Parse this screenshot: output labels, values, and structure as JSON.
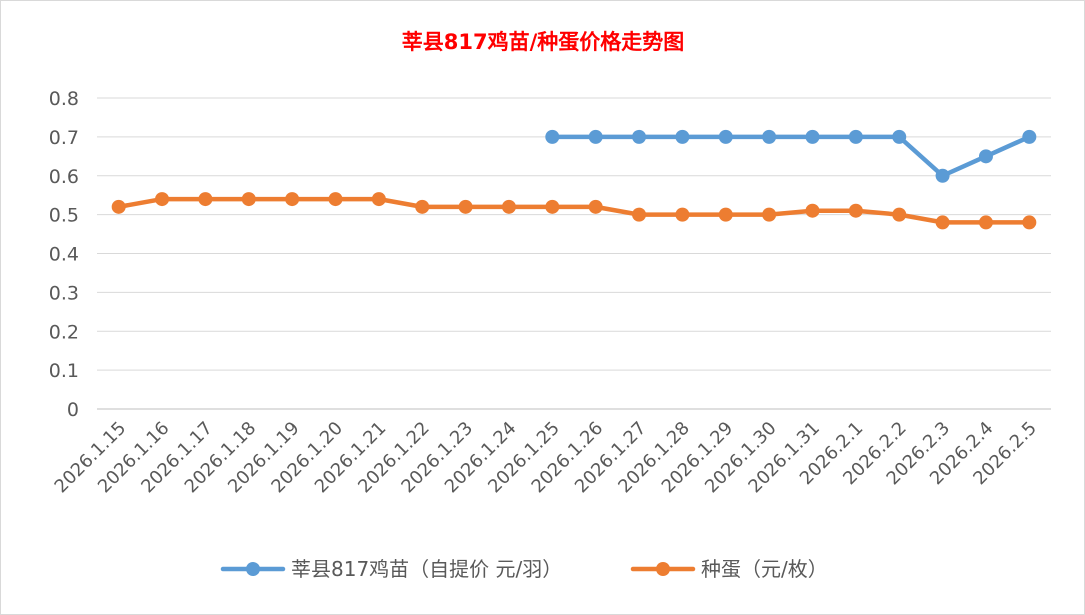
{
  "chart_data": {
    "type": "line",
    "title": "莘县817鸡苗/种蛋价格走势图",
    "title_color": "#ff0000",
    "categories": [
      "2026.1.15",
      "2026.1.16",
      "2026.1.17",
      "2026.1.18",
      "2026.1.19",
      "2026.1.20",
      "2026.1.21",
      "2026.1.22",
      "2026.1.23",
      "2026.1.24",
      "2026.1.25",
      "2026.1.26",
      "2026.1.27",
      "2026.1.28",
      "2026.1.29",
      "2026.1.30",
      "2026.1.31",
      "2026.2.1",
      "2026.2.2",
      "2026.2.3",
      "2026.2.4",
      "2026.2.5"
    ],
    "y_ticks": [
      "0",
      "0.1",
      "0.2",
      "0.3",
      "0.4",
      "0.5",
      "0.6",
      "0.7",
      "0.8"
    ],
    "ylim": [
      0,
      0.8
    ],
    "grid": true,
    "legend_position": "bottom",
    "series": [
      {
        "name": "莘县817鸡苗（自提价 元/羽）",
        "color": "#5b9bd5",
        "values": [
          null,
          null,
          null,
          null,
          null,
          null,
          null,
          null,
          null,
          null,
          0.7,
          0.7,
          0.7,
          0.7,
          0.7,
          0.7,
          0.7,
          0.7,
          0.7,
          0.6,
          0.65,
          0.7
        ]
      },
      {
        "name": "种蛋（元/枚）",
        "color": "#ed7d31",
        "values": [
          0.52,
          0.54,
          0.54,
          0.54,
          0.54,
          0.54,
          0.54,
          0.52,
          0.52,
          0.52,
          0.52,
          0.52,
          0.5,
          0.5,
          0.5,
          0.5,
          0.51,
          0.51,
          0.5,
          0.48,
          0.48,
          0.48
        ]
      }
    ]
  }
}
